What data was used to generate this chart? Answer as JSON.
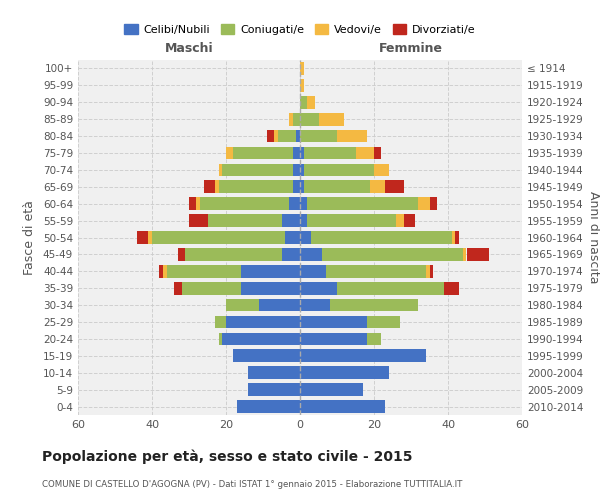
{
  "age_groups": [
    "0-4",
    "5-9",
    "10-14",
    "15-19",
    "20-24",
    "25-29",
    "30-34",
    "35-39",
    "40-44",
    "45-49",
    "50-54",
    "55-59",
    "60-64",
    "65-69",
    "70-74",
    "75-79",
    "80-84",
    "85-89",
    "90-94",
    "95-99",
    "100+"
  ],
  "birth_years": [
    "2010-2014",
    "2005-2009",
    "2000-2004",
    "1995-1999",
    "1990-1994",
    "1985-1989",
    "1980-1984",
    "1975-1979",
    "1970-1974",
    "1965-1969",
    "1960-1964",
    "1955-1959",
    "1950-1954",
    "1945-1949",
    "1940-1944",
    "1935-1939",
    "1930-1934",
    "1925-1929",
    "1920-1924",
    "1915-1919",
    "≤ 1914"
  ],
  "colors": {
    "celibe": "#4472C4",
    "coniugato": "#9BBB59",
    "vedovo": "#F4B942",
    "divorziato": "#C0271D"
  },
  "maschi": {
    "celibe": [
      17,
      14,
      14,
      18,
      21,
      20,
      11,
      16,
      16,
      5,
      4,
      5,
      3,
      2,
      2,
      2,
      1,
      0,
      0,
      0,
      0
    ],
    "coniugato": [
      0,
      0,
      0,
      0,
      1,
      3,
      9,
      16,
      20,
      26,
      36,
      20,
      24,
      20,
      19,
      16,
      5,
      2,
      0,
      0,
      0
    ],
    "vedovo": [
      0,
      0,
      0,
      0,
      0,
      0,
      0,
      0,
      1,
      0,
      1,
      0,
      1,
      1,
      1,
      2,
      1,
      1,
      0,
      0,
      0
    ],
    "divorziato": [
      0,
      0,
      0,
      0,
      0,
      0,
      0,
      2,
      1,
      2,
      3,
      5,
      2,
      3,
      0,
      0,
      2,
      0,
      0,
      0,
      0
    ]
  },
  "femmine": {
    "celibe": [
      23,
      17,
      24,
      34,
      18,
      18,
      8,
      10,
      7,
      6,
      3,
      2,
      2,
      1,
      1,
      1,
      0,
      0,
      0,
      0,
      0
    ],
    "coniugato": [
      0,
      0,
      0,
      0,
      4,
      9,
      24,
      29,
      27,
      38,
      38,
      24,
      30,
      18,
      19,
      14,
      10,
      5,
      2,
      0,
      0
    ],
    "vedovo": [
      0,
      0,
      0,
      0,
      0,
      0,
      0,
      0,
      1,
      1,
      1,
      2,
      3,
      4,
      4,
      5,
      8,
      7,
      2,
      1,
      1
    ],
    "divorziato": [
      0,
      0,
      0,
      0,
      0,
      0,
      0,
      4,
      1,
      6,
      1,
      3,
      2,
      5,
      0,
      2,
      0,
      0,
      0,
      0,
      0
    ]
  },
  "xlim": 60,
  "title": "Popolazione per età, sesso e stato civile - 2015",
  "subtitle": "COMUNE DI CASTELLO D'AGOGNA (PV) - Dati ISTAT 1° gennaio 2015 - Elaborazione TUTTITALIA.IT",
  "ylabel_left": "Fasce di età",
  "ylabel_right": "Anni di nascita",
  "xlabel_left": "Maschi",
  "xlabel_right": "Femmine",
  "bg_color": "#ffffff",
  "plot_bg_color": "#f0f0f0",
  "grid_color": "#cccccc"
}
